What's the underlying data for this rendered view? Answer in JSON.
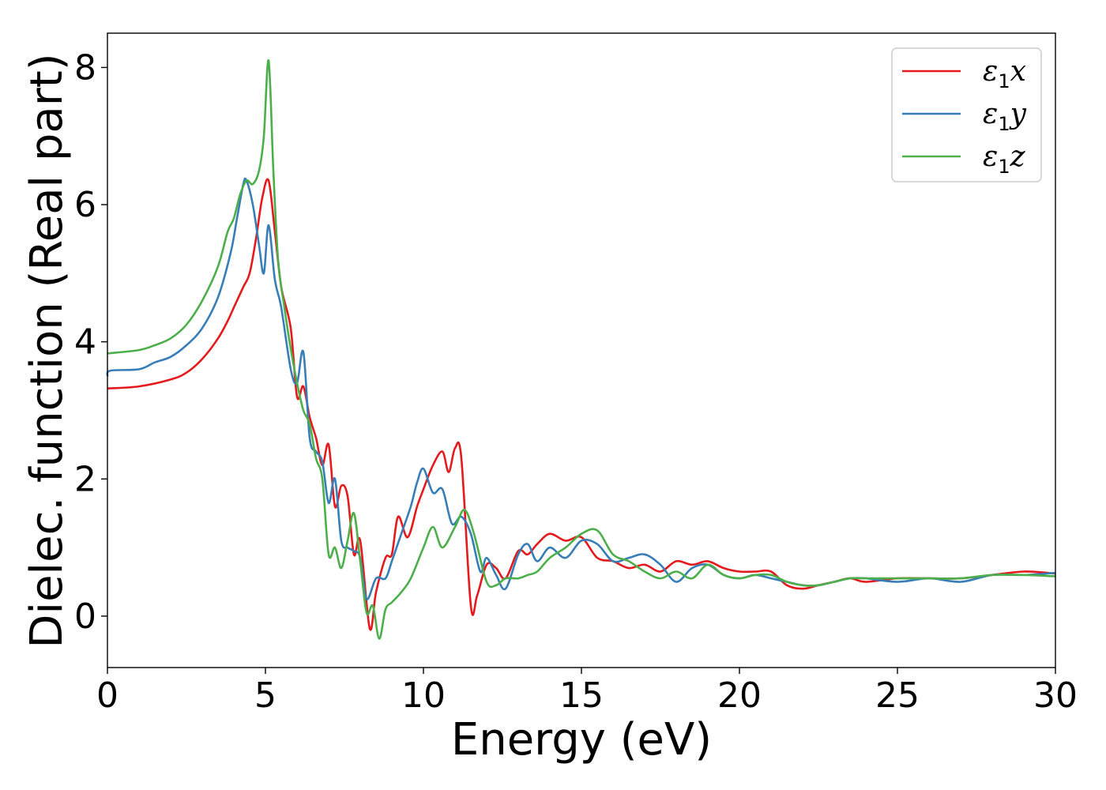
{
  "chart_data": {
    "type": "line",
    "title": "",
    "xlabel": "Energy (eV)",
    "ylabel": "Dielec. function (Real part)",
    "xlim": [
      0,
      30
    ],
    "ylim": [
      -0.75,
      8.5
    ],
    "xticks": [
      0,
      5,
      10,
      15,
      20,
      25,
      30
    ],
    "yticks": [
      0,
      2,
      4,
      6,
      8
    ],
    "grid": false,
    "legend_position": "top-right",
    "series": [
      {
        "name": "ε1x",
        "legend": {
          "main": "ε",
          "sub": "1",
          "suffix": "x"
        },
        "color": "#e41a1c",
        "x": [
          0,
          1,
          2,
          2.5,
          3,
          3.5,
          3.8,
          4.0,
          4.3,
          4.5,
          4.7,
          4.9,
          5.1,
          5.3,
          5.5,
          5.8,
          6.0,
          6.2,
          6.4,
          6.6,
          6.8,
          7.0,
          7.2,
          7.4,
          7.6,
          7.8,
          8.0,
          8.3,
          8.5,
          8.8,
          9.0,
          9.2,
          9.5,
          9.8,
          10.0,
          10.3,
          10.6,
          10.8,
          11.0,
          11.2,
          11.5,
          11.7,
          12.0,
          12.3,
          12.6,
          13.0,
          13.3,
          13.6,
          14.0,
          14.5,
          15.0,
          15.5,
          16.0,
          16.5,
          17.0,
          17.5,
          18.0,
          18.5,
          19.0,
          19.5,
          20.0,
          20.5,
          21.0,
          21.5,
          22.0,
          22.5,
          23.0,
          23.5,
          24.0,
          25.0,
          26.0,
          27.0,
          28.0,
          29.0,
          30.0
        ],
        "y": [
          3.32,
          3.35,
          3.45,
          3.55,
          3.75,
          4.05,
          4.3,
          4.5,
          4.8,
          5.0,
          5.5,
          6.1,
          6.35,
          5.6,
          4.8,
          4.2,
          3.2,
          3.35,
          2.9,
          2.6,
          2.2,
          2.5,
          1.6,
          1.9,
          1.75,
          0.9,
          1.1,
          -0.18,
          0.35,
          0.85,
          0.9,
          1.45,
          1.15,
          1.6,
          1.85,
          2.2,
          2.4,
          2.1,
          2.45,
          2.3,
          0.15,
          0.3,
          0.75,
          0.7,
          0.55,
          0.95,
          0.9,
          1.05,
          1.2,
          1.1,
          1.15,
          0.85,
          0.8,
          0.7,
          0.75,
          0.65,
          0.8,
          0.75,
          0.8,
          0.7,
          0.65,
          0.65,
          0.65,
          0.45,
          0.4,
          0.45,
          0.5,
          0.55,
          0.5,
          0.55,
          0.55,
          0.55,
          0.6,
          0.65,
          0.62
        ]
      },
      {
        "name": "ε1y",
        "legend": {
          "main": "ε",
          "sub": "1",
          "suffix": "y"
        },
        "color": "#377eb8",
        "x": [
          0,
          0.1,
          1,
          1.5,
          2,
          2.5,
          3,
          3.5,
          3.9,
          4.1,
          4.3,
          4.4,
          4.6,
          4.8,
          4.95,
          5.1,
          5.3,
          5.5,
          5.8,
          6.0,
          6.2,
          6.4,
          6.6,
          6.8,
          7.0,
          7.2,
          7.4,
          7.6,
          7.8,
          8.0,
          8.2,
          8.5,
          8.8,
          9.0,
          9.3,
          9.6,
          9.8,
          10.0,
          10.3,
          10.6,
          10.9,
          11.2,
          11.5,
          11.8,
          12.0,
          12.3,
          12.6,
          13.0,
          13.3,
          13.6,
          14.0,
          14.5,
          15.0,
          15.5,
          16.0,
          16.5,
          17.0,
          17.5,
          18.0,
          18.5,
          19.0,
          19.5,
          20.0,
          20.5,
          21.0,
          21.5,
          22.0,
          22.5,
          23.0,
          23.5,
          24.0,
          25.0,
          26.0,
          27.0,
          28.0,
          29.0,
          30.0
        ],
        "y": [
          3.5,
          3.58,
          3.6,
          3.7,
          3.78,
          3.95,
          4.2,
          4.65,
          5.3,
          5.8,
          6.3,
          6.35,
          6.0,
          5.4,
          5.0,
          5.7,
          4.9,
          4.5,
          3.6,
          3.4,
          3.85,
          2.6,
          2.4,
          2.25,
          1.65,
          2.0,
          1.1,
          1.0,
          0.95,
          0.85,
          0.25,
          0.55,
          0.55,
          0.8,
          1.2,
          1.6,
          1.95,
          2.15,
          1.8,
          1.85,
          1.35,
          1.45,
          1.2,
          0.65,
          0.85,
          0.6,
          0.4,
          0.9,
          1.05,
          0.8,
          1.0,
          0.85,
          1.1,
          1.05,
          0.8,
          0.85,
          0.9,
          0.75,
          0.5,
          0.7,
          0.75,
          0.6,
          0.55,
          0.6,
          0.55,
          0.5,
          0.45,
          0.45,
          0.5,
          0.55,
          0.55,
          0.5,
          0.55,
          0.5,
          0.6,
          0.6,
          0.63
        ]
      },
      {
        "name": "ε1z",
        "legend": {
          "main": "ε",
          "sub": "1",
          "suffix": "z"
        },
        "color": "#4daf4a",
        "x": [
          0,
          1,
          1.5,
          2,
          2.5,
          3,
          3.5,
          3.8,
          4.0,
          4.2,
          4.4,
          4.6,
          4.8,
          4.95,
          5.1,
          5.25,
          5.4,
          5.6,
          5.8,
          6.0,
          6.2,
          6.4,
          6.6,
          6.8,
          7.0,
          7.2,
          7.4,
          7.6,
          7.8,
          8.0,
          8.2,
          8.4,
          8.6,
          8.8,
          9.0,
          9.3,
          9.6,
          10.0,
          10.3,
          10.6,
          11.0,
          11.3,
          11.6,
          12.0,
          12.3,
          12.6,
          13.0,
          13.3,
          13.6,
          14.0,
          14.5,
          15.0,
          15.5,
          16.0,
          16.5,
          17.0,
          17.5,
          18.0,
          18.5,
          19.0,
          19.5,
          20.0,
          20.5,
          21.0,
          21.5,
          22.0,
          22.5,
          23.0,
          23.5,
          24.0,
          25.0,
          26.0,
          27.0,
          28.0,
          29.0,
          30.0
        ],
        "y": [
          3.83,
          3.88,
          3.95,
          4.05,
          4.25,
          4.6,
          5.1,
          5.6,
          5.8,
          6.15,
          6.35,
          6.3,
          6.5,
          7.0,
          8.1,
          6.5,
          5.2,
          4.5,
          3.9,
          3.4,
          3.0,
          2.8,
          2.3,
          2.0,
          0.9,
          1.0,
          0.7,
          1.1,
          1.5,
          0.8,
          0.05,
          0.15,
          -0.33,
          0.1,
          0.2,
          0.35,
          0.55,
          1.0,
          1.3,
          1.0,
          1.3,
          1.55,
          1.2,
          0.5,
          0.45,
          0.55,
          0.55,
          0.6,
          0.65,
          0.85,
          1.0,
          1.2,
          1.25,
          0.9,
          0.8,
          0.65,
          0.55,
          0.65,
          0.55,
          0.75,
          0.6,
          0.55,
          0.6,
          0.6,
          0.5,
          0.45,
          0.45,
          0.5,
          0.55,
          0.55,
          0.55,
          0.55,
          0.55,
          0.6,
          0.6,
          0.58
        ]
      }
    ]
  }
}
